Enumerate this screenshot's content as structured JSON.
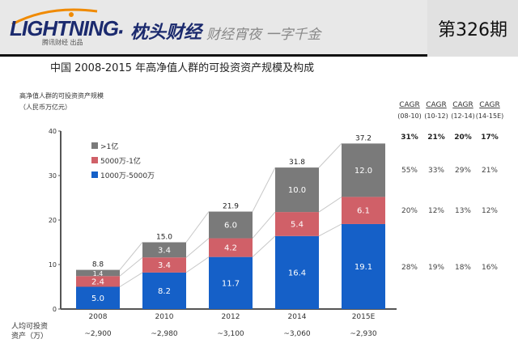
{
  "header": {
    "logo_text": "LIGHTNING",
    "logo_sub": "腾讯财经 出品",
    "brand": "· 枕头财经",
    "slogan": "财经宵夜 一字千金",
    "issue": "第326期"
  },
  "chart_data": {
    "type": "bar",
    "stacked": true,
    "title": "中国 2008-2015 年高净值人群的可投资资产规模及构成",
    "ylabel": "高净值人群的可投资资产规模（人民币万亿元）",
    "ylim": [
      0,
      40
    ],
    "yticks": [
      0,
      10,
      20,
      30,
      40
    ],
    "categories": [
      "2008",
      "2010",
      "2012",
      "2014",
      "2015E"
    ],
    "totals": [
      "8.8",
      "15.0",
      "21.9",
      "31.8",
      "37.2"
    ],
    "legend_position": "top-left",
    "series": [
      {
        "name": "1000万-5000万",
        "color": "#1560c8",
        "values": [
          5.0,
          8.2,
          11.7,
          16.4,
          19.1
        ]
      },
      {
        "name": "5000万-1亿",
        "color": "#d06068",
        "values": [
          2.4,
          3.4,
          4.2,
          5.4,
          6.1
        ]
      },
      {
        "name": ">1亿",
        "color": "#7a7a7a",
        "values": [
          1.4,
          3.4,
          6.0,
          10.0,
          12.0
        ]
      }
    ],
    "cagr": {
      "headers": [
        "CAGR",
        "CAGR",
        "CAGR",
        "CAGR"
      ],
      "periods": [
        "(08-10)",
        "(10-12)",
        "(12-14)",
        "(14-15E)"
      ],
      "total": [
        "31%",
        "21%",
        "20%",
        "17%"
      ],
      "rows": [
        [
          "55%",
          "33%",
          "29%",
          "21%"
        ],
        [
          "20%",
          "12%",
          "13%",
          "12%"
        ],
        [
          "28%",
          "19%",
          "18%",
          "16%"
        ]
      ]
    },
    "per_capita": {
      "label": "人均可投资资产（万）",
      "values": [
        "~2,900",
        "~2,980",
        "~3,100",
        "~3,060",
        "~2,930"
      ]
    }
  }
}
